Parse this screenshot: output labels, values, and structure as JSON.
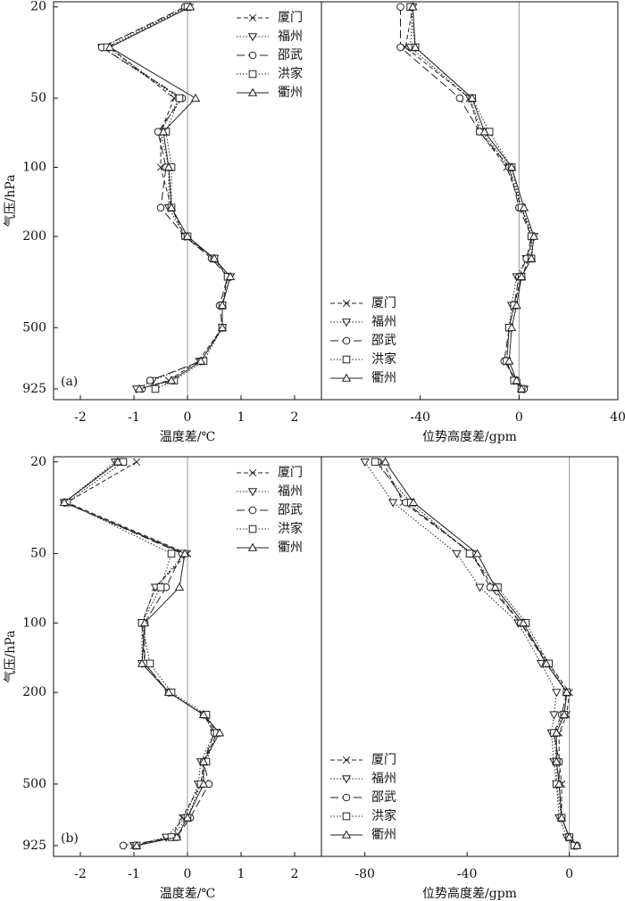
{
  "chart_data": [
    {
      "type": "line",
      "panel_label": "(a)",
      "x_label": "温度差/℃",
      "y_label": "气压/hPa",
      "y": [
        20,
        30,
        50,
        70,
        100,
        150,
        200,
        250,
        300,
        400,
        500,
        700,
        850,
        925
      ],
      "ylim": [
        19,
        1030
      ],
      "y_log": true,
      "y_inverted": true,
      "yticks": [
        20,
        50,
        100,
        200,
        500,
        925
      ],
      "xlim": [
        -2.5,
        2.5
      ],
      "xticks": [
        -2,
        -1,
        0,
        1,
        2
      ],
      "zero_line": true,
      "legend": "upper right",
      "series": [
        {
          "name": "厦门",
          "color": "#222",
          "marker": "x",
          "line_style": "dashed",
          "values": [
            0.05,
            -1.45,
            -0.25,
            -0.5,
            -0.5,
            -0.3,
            -0.05,
            0.5,
            0.75,
            0.65,
            0.65,
            0.2,
            -0.35,
            -0.9
          ]
        },
        {
          "name": "福州",
          "color": "#222",
          "marker": "triangle-down",
          "line_style": "dotted",
          "values": [
            0.0,
            -1.6,
            -0.15,
            -0.5,
            -0.35,
            -0.35,
            -0.05,
            0.5,
            0.8,
            0.65,
            0.65,
            0.25,
            -0.65,
            -0.95
          ]
        },
        {
          "name": "邵武",
          "color": "#222",
          "marker": "circle",
          "line_style": "long-dashed",
          "values": [
            -0.05,
            -1.6,
            -0.1,
            -0.55,
            -0.4,
            -0.5,
            -0.05,
            0.45,
            0.75,
            0.6,
            0.65,
            0.25,
            -0.7,
            -0.85
          ]
        },
        {
          "name": "洪家",
          "color": "#222",
          "marker": "square",
          "line_style": "dotted",
          "values": [
            0.0,
            -1.5,
            -0.15,
            -0.4,
            -0.3,
            -0.3,
            0.0,
            0.5,
            0.75,
            0.65,
            0.65,
            0.3,
            -0.25,
            -0.6
          ]
        },
        {
          "name": "衢州",
          "color": "#222",
          "marker": "triangle-up",
          "line_style": "solid",
          "values": [
            0.05,
            -1.45,
            0.15,
            -0.45,
            -0.35,
            -0.3,
            0.0,
            0.5,
            0.8,
            0.65,
            0.65,
            0.25,
            -0.3,
            -0.9
          ]
        }
      ]
    },
    {
      "type": "line",
      "x_label": "位势高度差/gpm",
      "y": [
        20,
        30,
        50,
        70,
        100,
        150,
        200,
        250,
        300,
        400,
        500,
        700,
        850,
        925
      ],
      "ylim": [
        19,
        1030
      ],
      "y_log": true,
      "y_inverted": true,
      "xlim": [
        -80,
        40
      ],
      "xticks": [
        -40,
        0,
        40
      ],
      "zero_line": true,
      "legend": "lower left",
      "series": [
        {
          "name": "厦门",
          "color": "#222",
          "marker": "x",
          "line_style": "dashed",
          "values": [
            -43,
            -46,
            -20,
            -16,
            -5,
            1,
            5,
            4,
            1,
            -2,
            -4,
            -5,
            -2,
            1
          ]
        },
        {
          "name": "福州",
          "color": "#222",
          "marker": "triangle-down",
          "line_style": "dotted",
          "values": [
            -43,
            -44,
            -20,
            -15,
            -4,
            1,
            6,
            3,
            -1,
            -3,
            -4,
            -5,
            -2,
            2
          ]
        },
        {
          "name": "邵武",
          "color": "#222",
          "marker": "circle",
          "line_style": "long-dashed",
          "values": [
            -48,
            -48,
            -24,
            -16,
            -4,
            0,
            5,
            3,
            0,
            -2,
            -4,
            -6,
            -1,
            2
          ]
        },
        {
          "name": "洪家",
          "color": "#222",
          "marker": "square",
          "line_style": "dotted",
          "values": [
            -44,
            -42,
            -19,
            -12,
            -3,
            1,
            5,
            5,
            1,
            -2,
            -4,
            -5,
            -2,
            1
          ]
        },
        {
          "name": "衢州",
          "color": "#222",
          "marker": "triangle-up",
          "line_style": "solid",
          "values": [
            -43,
            -42,
            -19,
            -14,
            -3,
            2,
            6,
            5,
            1,
            -1,
            -3,
            -4,
            -1,
            1
          ]
        }
      ]
    },
    {
      "type": "line",
      "panel_label": "(b)",
      "x_label": "温度差/℃",
      "y_label": "气压/hPa",
      "y": [
        20,
        30,
        50,
        70,
        100,
        150,
        200,
        250,
        300,
        400,
        500,
        700,
        850,
        925
      ],
      "ylim": [
        19,
        1030
      ],
      "y_log": true,
      "y_inverted": true,
      "yticks": [
        20,
        50,
        100,
        200,
        500,
        925
      ],
      "xlim": [
        -2.5,
        2.5
      ],
      "xticks": [
        -2,
        -1,
        0,
        1,
        2
      ],
      "zero_line": true,
      "legend": "upper right",
      "series": [
        {
          "name": "厦门",
          "color": "#222",
          "marker": "x",
          "line_style": "dashed",
          "values": [
            -0.95,
            -2.25,
            0.0,
            -0.6,
            -0.85,
            -0.8,
            -0.35,
            0.3,
            0.55,
            0.3,
            0.25,
            -0.1,
            -0.3,
            -1.0
          ]
        },
        {
          "name": "福州",
          "color": "#222",
          "marker": "triangle-down",
          "line_style": "dotted",
          "values": [
            -1.35,
            -2.3,
            -0.05,
            -0.6,
            -0.85,
            -0.85,
            -0.35,
            0.3,
            0.5,
            0.25,
            0.2,
            -0.05,
            -0.4,
            -1.0
          ]
        },
        {
          "name": "邵武",
          "color": "#222",
          "marker": "circle",
          "line_style": "long-dashed",
          "values": [
            -1.3,
            -2.3,
            -0.1,
            -0.4,
            -0.8,
            -0.8,
            -0.35,
            0.3,
            0.5,
            0.3,
            0.4,
            0.05,
            -0.2,
            -1.2
          ]
        },
        {
          "name": "洪家",
          "color": "#222",
          "marker": "square",
          "line_style": "dotted",
          "values": [
            -1.2,
            -2.25,
            -0.3,
            -0.5,
            -0.85,
            -0.7,
            -0.3,
            0.35,
            0.55,
            0.35,
            0.25,
            0.0,
            -0.3,
            -0.95
          ]
        },
        {
          "name": "衢州",
          "color": "#222",
          "marker": "triangle-up",
          "line_style": "solid",
          "values": [
            -1.3,
            -2.3,
            -0.05,
            -0.15,
            -0.8,
            -0.85,
            -0.35,
            0.3,
            0.6,
            0.3,
            0.3,
            0.0,
            -0.2,
            -0.95
          ]
        }
      ]
    },
    {
      "type": "line",
      "x_label": "位势高度差/gpm",
      "y": [
        20,
        30,
        50,
        70,
        100,
        150,
        200,
        250,
        300,
        400,
        500,
        700,
        850,
        925
      ],
      "ylim": [
        19,
        1030
      ],
      "y_log": true,
      "y_inverted": true,
      "xlim": [
        -97,
        19
      ],
      "xticks": [
        -80,
        -40,
        0
      ],
      "zero_line": true,
      "legend": "lower left",
      "series": [
        {
          "name": "厦门",
          "color": "#222",
          "marker": "x",
          "line_style": "dashed",
          "values": [
            -73,
            -65,
            -38,
            -30,
            -19,
            -8,
            0,
            -1,
            -4,
            -4,
            -3,
            -3,
            0,
            2
          ]
        },
        {
          "name": "福州",
          "color": "#222",
          "marker": "triangle-down",
          "line_style": "dotted",
          "values": [
            -80,
            -69,
            -44,
            -35,
            -20,
            -11,
            -5,
            -6,
            -7,
            -6,
            -5,
            -4,
            -1,
            2
          ]
        },
        {
          "name": "邵武",
          "color": "#222",
          "marker": "circle",
          "line_style": "long-dashed",
          "values": [
            -75,
            -64,
            -38,
            -31,
            -19,
            -9,
            -1,
            -3,
            -6,
            -4,
            -4,
            -3,
            0,
            3
          ]
        },
        {
          "name": "洪家",
          "color": "#222",
          "marker": "square",
          "line_style": "dotted",
          "values": [
            -76,
            -62,
            -39,
            -28,
            -17,
            -8,
            -1,
            -2,
            -6,
            -5,
            -5,
            -3,
            0,
            2
          ]
        },
        {
          "name": "衢州",
          "color": "#222",
          "marker": "triangle-up",
          "line_style": "solid",
          "values": [
            -72,
            -61,
            -36,
            -29,
            -18,
            -9,
            -1,
            -2,
            -5,
            -5,
            -4,
            -3,
            0,
            3
          ]
        }
      ]
    }
  ]
}
